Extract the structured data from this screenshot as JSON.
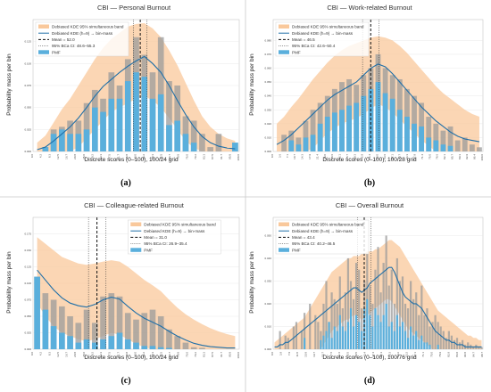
{
  "figure": {
    "panel_labels": [
      "(a)",
      "(b)",
      "(c)",
      "(d)"
    ]
  },
  "colors": {
    "band": "#f9c89b",
    "kde": "#1f6fa8",
    "pmf": "#5aafdc",
    "bin_mass": "#9b9b9b",
    "mean": "#111111",
    "ci": "#333333"
  },
  "chart_data": [
    {
      "type": "bar",
      "title": "CBI — Personal Burnout",
      "xlabel": "Discrete scores (0–100), 100/24 grid",
      "ylabel": "Probability mass per bin",
      "ylim": [
        0,
        0.15
      ],
      "y_ticks": [
        "0.000",
        "0.025",
        "0.050",
        "0.075",
        "0.100",
        "0.125"
      ],
      "x_ticks": [
        "0.0",
        "4.2",
        "8.3",
        "12.5",
        "16.7",
        "20.8",
        "25.0",
        "29.2",
        "33.3",
        "37.5",
        "41.7",
        "45.8",
        "50.0",
        "54.2",
        "58.3",
        "62.5",
        "66.7",
        "70.8",
        "75.0",
        "79.2",
        "83.3",
        "87.5",
        "91.7",
        "95.8",
        "100.0"
      ],
      "pmf": [
        0,
        0.005,
        0.02,
        0.025,
        0.02,
        0.02,
        0.025,
        0.05,
        0.045,
        0.06,
        0.06,
        0.08,
        0.09,
        0.085,
        0.06,
        0.065,
        0.03,
        0.035,
        0.02,
        0.01,
        0,
        0,
        0,
        0,
        0.01
      ],
      "bin_mass": [
        0,
        0.005,
        0.025,
        0.028,
        0.035,
        0.035,
        0.055,
        0.07,
        0.06,
        0.09,
        0.075,
        0.105,
        0.13,
        0.11,
        0.09,
        0.13,
        0.08,
        0.075,
        0.04,
        0.035,
        0.02,
        0.005,
        0.02,
        0,
        0.01
      ],
      "kde": [
        0.002,
        0.005,
        0.012,
        0.02,
        0.028,
        0.038,
        0.05,
        0.063,
        0.074,
        0.082,
        0.09,
        0.097,
        0.103,
        0.108,
        0.1,
        0.09,
        0.075,
        0.058,
        0.042,
        0.028,
        0.017,
        0.01,
        0.006,
        0.004,
        0.003
      ],
      "band_upper": [
        0.01,
        0.018,
        0.033,
        0.048,
        0.06,
        0.075,
        0.09,
        0.105,
        0.118,
        0.128,
        0.135,
        0.142,
        0.145,
        0.146,
        0.14,
        0.13,
        0.115,
        0.098,
        0.078,
        0.058,
        0.04,
        0.028,
        0.02,
        0.015,
        0.012
      ],
      "band_lower": [
        0,
        0,
        0,
        0,
        0,
        0.005,
        0.015,
        0.025,
        0.035,
        0.045,
        0.05,
        0.055,
        0.06,
        0.063,
        0.058,
        0.05,
        0.038,
        0.025,
        0.012,
        0.004,
        0,
        0,
        0,
        0,
        0
      ],
      "mean": 52.0,
      "ci": [
        48.6,
        55.3
      ],
      "legend": [
        "Debiased KDE 95% simultaneous band",
        "Debiased KDE (h=9) → bin-mass",
        "Mean = 52.0",
        "95% BCa CI: 48.6–55.3",
        "PMF"
      ],
      "legend_position": "top-left"
    },
    {
      "type": "bar",
      "title": "CBI — Work-related Burnout",
      "xlabel": "Discrete scores (0–100), 100/28 grid",
      "ylabel": "Probability mass per bin",
      "ylim": [
        0,
        0.095
      ],
      "y_ticks": [
        "0.000",
        "0.010",
        "0.020",
        "0.030",
        "0.040",
        "0.050",
        "0.060",
        "0.070",
        "0.080"
      ],
      "x_ticks": [
        "0.0",
        "3.6",
        "7.1",
        "10.7",
        "14.3",
        "17.9",
        "21.4",
        "25.0",
        "28.6",
        "32.1",
        "35.7",
        "39.3",
        "42.9",
        "46.4",
        "50.0",
        "53.6",
        "57.1",
        "60.7",
        "64.3",
        "67.9",
        "71.4",
        "75.0",
        "78.6",
        "82.1",
        "85.7",
        "89.3",
        "92.9",
        "96.4",
        "100.0"
      ],
      "pmf": [
        0,
        0,
        0.008,
        0.005,
        0.01,
        0.012,
        0.02,
        0.025,
        0.028,
        0.03,
        0.033,
        0.035,
        0.04,
        0.045,
        0.05,
        0.042,
        0.038,
        0.03,
        0.025,
        0.02,
        0.018,
        0.01,
        0.008,
        0.005,
        0.004,
        0,
        0,
        0,
        0
      ],
      "bin_mass": [
        0,
        0.012,
        0.015,
        0.01,
        0.022,
        0.03,
        0.035,
        0.04,
        0.045,
        0.05,
        0.052,
        0.048,
        0.055,
        0.06,
        0.07,
        0.06,
        0.055,
        0.052,
        0.045,
        0.04,
        0.035,
        0.025,
        0.02,
        0.015,
        0.018,
        0.008,
        0.01,
        0.005,
        0.003
      ],
      "kde": [
        0.005,
        0.008,
        0.012,
        0.017,
        0.022,
        0.027,
        0.032,
        0.037,
        0.041,
        0.044,
        0.047,
        0.05,
        0.055,
        0.06,
        0.063,
        0.061,
        0.056,
        0.05,
        0.044,
        0.038,
        0.032,
        0.027,
        0.022,
        0.018,
        0.014,
        0.011,
        0.009,
        0.008,
        0.007
      ],
      "band_upper": [
        0.02,
        0.025,
        0.032,
        0.038,
        0.045,
        0.052,
        0.058,
        0.064,
        0.069,
        0.073,
        0.076,
        0.078,
        0.08,
        0.082,
        0.083,
        0.082,
        0.08,
        0.076,
        0.071,
        0.065,
        0.059,
        0.053,
        0.047,
        0.042,
        0.038,
        0.034,
        0.03,
        0.027,
        0.025
      ],
      "band_lower": [
        0,
        0,
        0,
        0,
        0,
        0.002,
        0.008,
        0.013,
        0.017,
        0.02,
        0.022,
        0.024,
        0.027,
        0.031,
        0.034,
        0.032,
        0.028,
        0.023,
        0.018,
        0.013,
        0.008,
        0.004,
        0,
        0,
        0,
        0,
        0,
        0,
        0
      ],
      "mean": 46.5,
      "ci": [
        42.6,
        50.4
      ],
      "legend": [
        "Debiased KDE 95% simultaneous band",
        "Debiased KDE (h=9) → bin-mass",
        "Mean = 46.5",
        "95% BCa CI: 42.6–50.4",
        "PMF"
      ],
      "legend_position": "top-left"
    },
    {
      "type": "bar",
      "title": "CBI — Colleague-related Burnout",
      "xlabel": "Discrete scores (0–100), 100/24 grid",
      "ylabel": "Probability mass per bin",
      "ylim": [
        0,
        0.2
      ],
      "y_ticks": [
        "0.000",
        "0.025",
        "0.050",
        "0.075",
        "0.100",
        "0.125",
        "0.150",
        "0.175"
      ],
      "x_ticks": [
        "0.0",
        "4.2",
        "8.3",
        "12.5",
        "16.7",
        "20.8",
        "25.0",
        "29.2",
        "33.3",
        "37.5",
        "41.7",
        "45.8",
        "50.0",
        "54.2",
        "58.3",
        "62.5",
        "66.7",
        "70.8",
        "75.0",
        "79.2",
        "83.3",
        "87.5",
        "91.7",
        "95.8",
        "100.0"
      ],
      "pmf": [
        0.11,
        0.06,
        0.035,
        0.025,
        0.02,
        0.01,
        0.015,
        0.01,
        0.015,
        0.02,
        0.025,
        0.015,
        0.01,
        0.005,
        0.005,
        0.003,
        0.002,
        0,
        0,
        0,
        0,
        0,
        0,
        0,
        0
      ],
      "bin_mass": [
        0.11,
        0.085,
        0.075,
        0.065,
        0.05,
        0.04,
        0.06,
        0.04,
        0.08,
        0.085,
        0.08,
        0.055,
        0.045,
        0.055,
        0.06,
        0.05,
        0.03,
        0.02,
        0.01,
        0.003,
        0.002,
        0,
        0,
        0,
        0
      ],
      "kde": [
        0.12,
        0.105,
        0.09,
        0.078,
        0.07,
        0.066,
        0.064,
        0.068,
        0.075,
        0.079,
        0.076,
        0.065,
        0.055,
        0.047,
        0.041,
        0.035,
        0.027,
        0.02,
        0.014,
        0.009,
        0.006,
        0.004,
        0.003,
        0.002,
        0.002
      ],
      "band_upper": [
        0.17,
        0.16,
        0.15,
        0.14,
        0.135,
        0.13,
        0.128,
        0.13,
        0.133,
        0.135,
        0.133,
        0.125,
        0.115,
        0.105,
        0.097,
        0.088,
        0.075,
        0.063,
        0.053,
        0.045,
        0.038,
        0.032,
        0.027,
        0.023,
        0.02
      ],
      "band_lower": [
        0.07,
        0.05,
        0.035,
        0.025,
        0.02,
        0.015,
        0.012,
        0.015,
        0.02,
        0.025,
        0.022,
        0.015,
        0.008,
        0.003,
        0,
        0,
        0,
        0,
        0,
        0,
        0,
        0,
        0,
        0,
        0
      ],
      "mean": 31.0,
      "ci": [
        26.9,
        35.4
      ],
      "legend": [
        "Debiased KDE 95% simultaneous band",
        "Debiased KDE (h=9) → bin-mass",
        "Mean = 31.0",
        "95% BCa CI: 26.9–35.4",
        "PMF"
      ],
      "legend_position": "top-right"
    },
    {
      "type": "bar",
      "title": "CBI — Overall Burnout",
      "xlabel": "Discrete scores (0–100), 100/76 grid",
      "ylabel": "Probability mass per bin",
      "ylim": [
        0,
        0.058
      ],
      "y_ticks": [
        "0.000",
        "0.010",
        "0.020",
        "0.030",
        "0.040",
        "0.050"
      ],
      "x_ticks": [
        "0.0",
        "3.9",
        "7.9",
        "11.8",
        "15.8",
        "19.7",
        "23.7",
        "27.6",
        "31.6",
        "35.5",
        "39.5",
        "43.4",
        "47.4",
        "51.3",
        "55.3",
        "59.2",
        "63.2",
        "67.1",
        "71.1",
        "75.0",
        "78.9",
        "82.9",
        "86.8",
        "90.8",
        "94.7",
        "98.7"
      ],
      "pmf": [
        0,
        0,
        0,
        0,
        0,
        0,
        0,
        0,
        0,
        0,
        0,
        0.005,
        0,
        0,
        0,
        0,
        0,
        0.004,
        0.006,
        0.008,
        0.012,
        0.005,
        0.01,
        0.008,
        0.015,
        0.01,
        0.008,
        0.012,
        0.018,
        0.01,
        0.015,
        0.012,
        0.008,
        0.018,
        0.022,
        0.015,
        0.01,
        0.018,
        0.015,
        0.012,
        0.015,
        0.02,
        0.01,
        0.012,
        0.008,
        0.015,
        0.01,
        0.012,
        0.008,
        0.005,
        0.01,
        0.006,
        0.008,
        0.004,
        0.006,
        0.003,
        0.003,
        0.002,
        0,
        0,
        0.002,
        0,
        0,
        0,
        0,
        0,
        0,
        0,
        0,
        0,
        0,
        0,
        0,
        0,
        0,
        0,
        0
      ],
      "bin_mass": [
        0,
        0,
        0.008,
        0,
        0.006,
        0.005,
        0,
        0.01,
        0.012,
        0,
        0.008,
        0.016,
        0,
        0.02,
        0,
        0.015,
        0.012,
        0.008,
        0.02,
        0.03,
        0.012,
        0.025,
        0.022,
        0.02,
        0.032,
        0.018,
        0.025,
        0.04,
        0.03,
        0.022,
        0.038,
        0.035,
        0.018,
        0.03,
        0.042,
        0.028,
        0.02,
        0.035,
        0.045,
        0.025,
        0.038,
        0.05,
        0.028,
        0.035,
        0.02,
        0.04,
        0.03,
        0.032,
        0.02,
        0.018,
        0.03,
        0.022,
        0.025,
        0.015,
        0.028,
        0.015,
        0.018,
        0.01,
        0.012,
        0.015,
        0.012,
        0.01,
        0.008,
        0.005,
        0.008,
        0.006,
        0.004,
        0.005,
        0.003,
        0.004,
        0.002,
        0.003,
        0.002,
        0.001,
        0.002,
        0.001,
        0.001
      ],
      "kde": [
        0.001,
        0.001,
        0.002,
        0.002,
        0.003,
        0.003,
        0.004,
        0.005,
        0.006,
        0.007,
        0.008,
        0.009,
        0.01,
        0.011,
        0.012,
        0.013,
        0.014,
        0.015,
        0.016,
        0.017,
        0.018,
        0.019,
        0.02,
        0.021,
        0.022,
        0.023,
        0.024,
        0.025,
        0.026,
        0.027,
        0.027,
        0.026,
        0.025,
        0.026,
        0.027,
        0.029,
        0.03,
        0.031,
        0.032,
        0.033,
        0.034,
        0.035,
        0.036,
        0.036,
        0.034,
        0.031,
        0.028,
        0.025,
        0.023,
        0.022,
        0.021,
        0.02,
        0.02,
        0.019,
        0.018,
        0.016,
        0.014,
        0.012,
        0.01,
        0.008,
        0.007,
        0.006,
        0.005,
        0.004,
        0.004,
        0.003,
        0.003,
        0.002,
        0.002,
        0.002,
        0.001,
        0.001,
        0.001,
        0.001,
        0.001,
        0.001,
        0.001
      ],
      "band_upper": [
        0.003,
        0.004,
        0.005,
        0.006,
        0.007,
        0.008,
        0.009,
        0.01,
        0.011,
        0.012,
        0.013,
        0.014,
        0.016,
        0.018,
        0.02,
        0.022,
        0.024,
        0.026,
        0.028,
        0.03,
        0.032,
        0.034,
        0.035,
        0.036,
        0.037,
        0.038,
        0.039,
        0.04,
        0.04,
        0.041,
        0.041,
        0.041,
        0.042,
        0.042,
        0.043,
        0.043,
        0.043,
        0.044,
        0.044,
        0.045,
        0.046,
        0.047,
        0.048,
        0.048,
        0.047,
        0.046,
        0.045,
        0.043,
        0.041,
        0.039,
        0.037,
        0.035,
        0.033,
        0.031,
        0.029,
        0.027,
        0.025,
        0.023,
        0.021,
        0.019,
        0.017,
        0.016,
        0.015,
        0.014,
        0.013,
        0.012,
        0.011,
        0.01,
        0.009,
        0.008,
        0.007,
        0.006,
        0.006,
        0.005,
        0.005,
        0.004,
        0.004
      ],
      "band_lower": [
        0,
        0,
        0,
        0,
        0,
        0,
        0,
        0,
        0,
        0,
        0,
        0,
        0,
        0,
        0,
        0,
        0,
        0,
        0.002,
        0.004,
        0.006,
        0.008,
        0.009,
        0.01,
        0.011,
        0.012,
        0.013,
        0.013,
        0.014,
        0.015,
        0.015,
        0.014,
        0.013,
        0.014,
        0.015,
        0.016,
        0.017,
        0.018,
        0.019,
        0.02,
        0.021,
        0.022,
        0.022,
        0.021,
        0.019,
        0.017,
        0.015,
        0.013,
        0.011,
        0.009,
        0.008,
        0.007,
        0.006,
        0.005,
        0.004,
        0.003,
        0.002,
        0.001,
        0,
        0,
        0,
        0,
        0,
        0,
        0,
        0,
        0,
        0,
        0,
        0,
        0,
        0,
        0,
        0,
        0,
        0,
        0
      ],
      "mean": 43.4,
      "ci": [
        40.2,
        46.5
      ],
      "legend": [
        "Debiased KDE 95% simultaneous band",
        "Debiased KDE (h=9) → bin-mass",
        "Mean = 43.4",
        "95% BCa CI: 40.2–46.5",
        "PMF"
      ],
      "legend_position": "top-left"
    }
  ]
}
